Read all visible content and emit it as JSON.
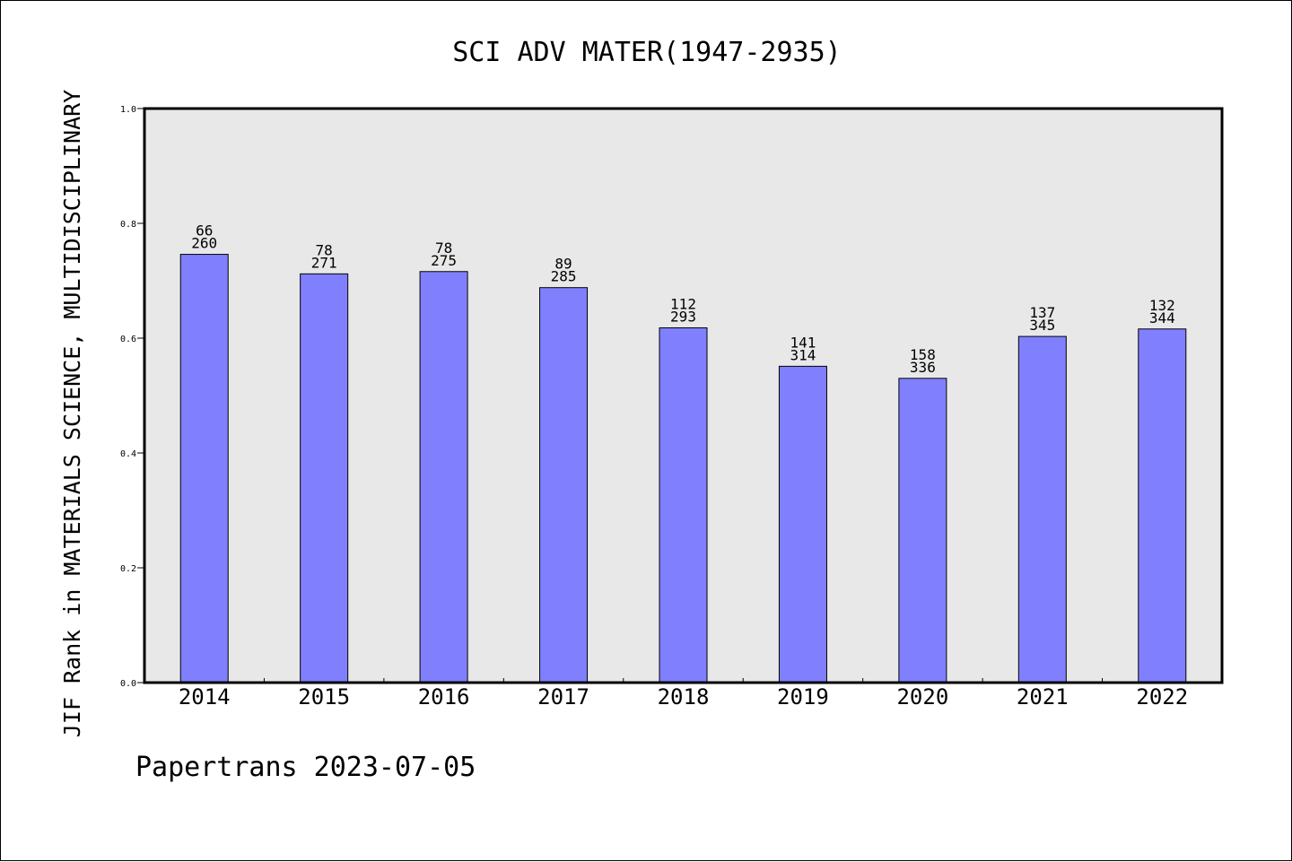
{
  "chart_data": {
    "type": "bar",
    "title": "SCI ADV MATER(1947-2935)",
    "xlabel": "",
    "ylabel": "JIF Rank in MATERIALS SCIENCE, MULTIDISCIPLINARY",
    "ylim": [
      0,
      1.0
    ],
    "yticks": [
      "0.0",
      "0.2",
      "0.4",
      "0.6",
      "0.8",
      "1.0"
    ],
    "grid": false,
    "categories": [
      "2014",
      "2015",
      "2016",
      "2017",
      "2018",
      "2019",
      "2020",
      "2021",
      "2022"
    ],
    "values": [
      0.746,
      0.712,
      0.716,
      0.688,
      0.618,
      0.551,
      0.53,
      0.603,
      0.616
    ],
    "rank_labels": [
      "66",
      "78",
      "78",
      "89",
      "112",
      "141",
      "158",
      "137",
      "132"
    ],
    "total_labels": [
      "260",
      "271",
      "275",
      "285",
      "293",
      "314",
      "336",
      "345",
      "344"
    ],
    "bar_color": "#8080ff",
    "plot_background": "#e8e8e8"
  },
  "footer": {
    "text": "Papertrans 2023-07-05"
  }
}
